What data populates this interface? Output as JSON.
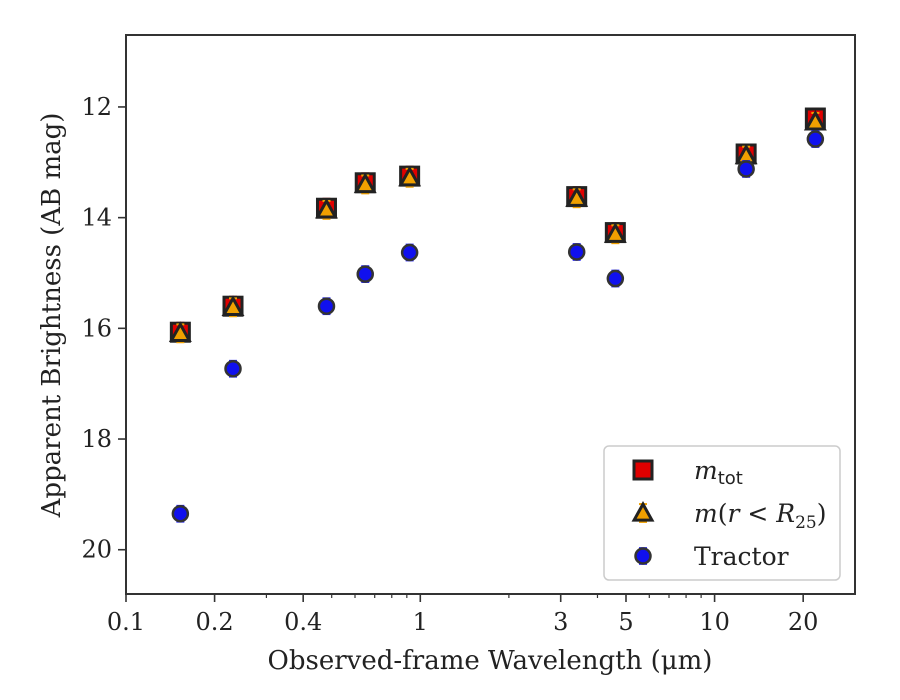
{
  "chart_data": {
    "type": "scatter",
    "xlabel": "Observed-frame Wavelength (μm)",
    "ylabel": "Apparent Brightness (AB mag)",
    "x_scale": "log",
    "xlim": [
      0.1,
      30
    ],
    "ylim": [
      20.8,
      10.7
    ],
    "y_inverted": true,
    "x_ticks": [
      {
        "value": 0.1,
        "label": "0.1"
      },
      {
        "value": 0.2,
        "label": "0.2"
      },
      {
        "value": 0.4,
        "label": "0.4"
      },
      {
        "value": 1,
        "label": "1"
      },
      {
        "value": 3,
        "label": "3"
      },
      {
        "value": 5,
        "label": "5"
      },
      {
        "value": 10,
        "label": "10"
      },
      {
        "value": 20,
        "label": "20"
      }
    ],
    "y_ticks": [
      {
        "value": 12,
        "label": "12"
      },
      {
        "value": 14,
        "label": "14"
      },
      {
        "value": 16,
        "label": "16"
      },
      {
        "value": 18,
        "label": "18"
      },
      {
        "value": 20,
        "label": "20"
      }
    ],
    "grid": false,
    "legend_position": "bottom-right",
    "series": [
      {
        "name": "m_tot",
        "marker": "square",
        "color": "#e00000",
        "edge_color": "#222222",
        "error_color": "#cc0000",
        "points": [
          {
            "x": 0.153,
            "y": 16.07
          },
          {
            "x": 0.231,
            "y": 15.6
          },
          {
            "x": 0.48,
            "y": 13.83
          },
          {
            "x": 0.65,
            "y": 13.37
          },
          {
            "x": 0.92,
            "y": 13.25
          },
          {
            "x": 3.4,
            "y": 13.62
          },
          {
            "x": 4.6,
            "y": 14.27
          },
          {
            "x": 12.8,
            "y": 12.85
          },
          {
            "x": 22.0,
            "y": 12.2
          }
        ]
      },
      {
        "name": "m(r < R25)",
        "marker": "triangle",
        "color": "#f0a000",
        "edge_color": "#222222",
        "error_color": "#f0a000",
        "points": [
          {
            "x": 0.153,
            "y": 16.09
          },
          {
            "x": 0.231,
            "y": 15.62
          },
          {
            "x": 0.48,
            "y": 13.86
          },
          {
            "x": 0.65,
            "y": 13.4
          },
          {
            "x": 0.92,
            "y": 13.28
          },
          {
            "x": 3.4,
            "y": 13.65
          },
          {
            "x": 4.6,
            "y": 14.3
          },
          {
            "x": 12.8,
            "y": 12.88
          },
          {
            "x": 22.0,
            "y": 12.27
          }
        ]
      },
      {
        "name": "Tractor",
        "marker": "circle",
        "color": "#1010ee",
        "edge_color": "#333333",
        "error_color": "#2020ff",
        "points": [
          {
            "x": 0.153,
            "y": 19.35
          },
          {
            "x": 0.231,
            "y": 16.73
          },
          {
            "x": 0.48,
            "y": 15.6
          },
          {
            "x": 0.65,
            "y": 15.02
          },
          {
            "x": 0.92,
            "y": 14.63
          },
          {
            "x": 3.4,
            "y": 14.62
          },
          {
            "x": 4.6,
            "y": 15.1
          },
          {
            "x": 12.8,
            "y": 13.12
          },
          {
            "x": 22.0,
            "y": 12.58
          }
        ]
      }
    ]
  }
}
